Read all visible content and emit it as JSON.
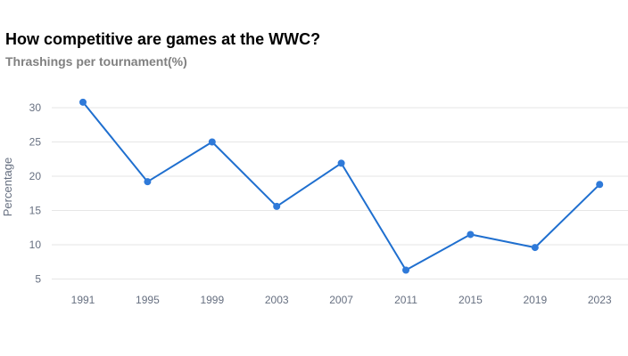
{
  "chart_data": {
    "type": "line",
    "title": "How competitive are games at the WWC?",
    "subtitle": "Thrashings per tournament(%)",
    "xlabel": "",
    "ylabel": "Percentage",
    "categories": [
      "1991",
      "1995",
      "1999",
      "2003",
      "2007",
      "2011",
      "2015",
      "2019",
      "2023"
    ],
    "series": [
      {
        "values": [
          30.8,
          19.2,
          25.0,
          15.6,
          21.9,
          6.3,
          11.5,
          9.6,
          18.8
        ]
      }
    ],
    "yticks": [
      5,
      10,
      15,
      20,
      25,
      30
    ],
    "ylim": [
      4,
      33
    ],
    "grid": true,
    "legend": "none",
    "colors": {
      "line": "#1f6fcf",
      "marker": "#2f7ad9",
      "grid": "#e6e6e6"
    }
  }
}
